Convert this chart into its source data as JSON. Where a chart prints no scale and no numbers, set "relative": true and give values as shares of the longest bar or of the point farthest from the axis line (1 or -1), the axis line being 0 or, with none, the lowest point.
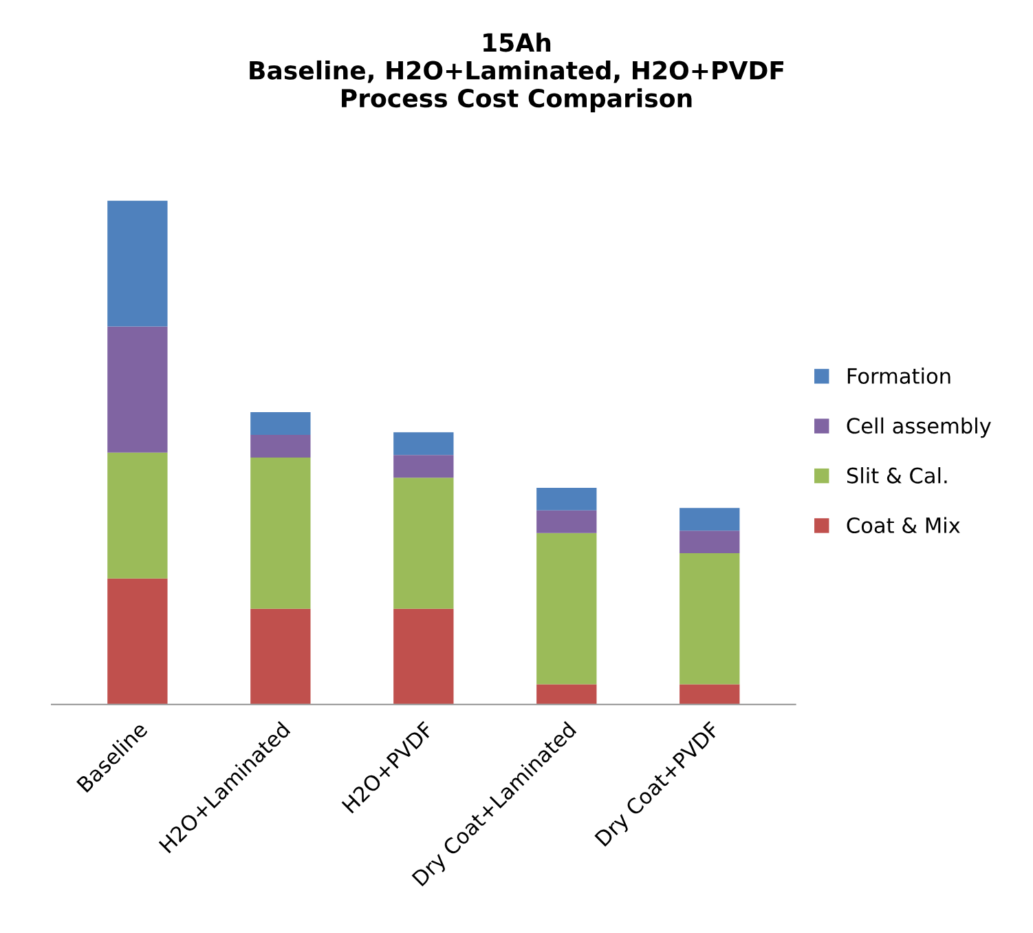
{
  "chart_data": {
    "type": "bar",
    "title": "15Ah\nBaseline, H2O+Laminated, H2O+PVDF\nProcess Cost Comparison",
    "categories": [
      "Baseline",
      "H2O+Laminated",
      "H2O+PVDF",
      "Dry Coat+Laminated",
      "Dry Coat+PVDF"
    ],
    "relative": true,
    "stacked": true,
    "legend": "right",
    "grid": false,
    "series": [
      {
        "name": "Coat & Mix",
        "color": "#c0504d",
        "values": [
          0.25,
          0.19,
          0.19,
          0.04,
          0.04
        ]
      },
      {
        "name": "Slit & Cal.",
        "color": "#9bbb59",
        "values": [
          0.25,
          0.3,
          0.26,
          0.3,
          0.26
        ]
      },
      {
        "name": "Cell assembly",
        "color": "#8064a2",
        "values": [
          0.25,
          0.045,
          0.045,
          0.045,
          0.045
        ]
      },
      {
        "name": "Formation",
        "color": "#4f81bd",
        "values": [
          0.25,
          0.045,
          0.045,
          0.045,
          0.045
        ]
      }
    ]
  }
}
